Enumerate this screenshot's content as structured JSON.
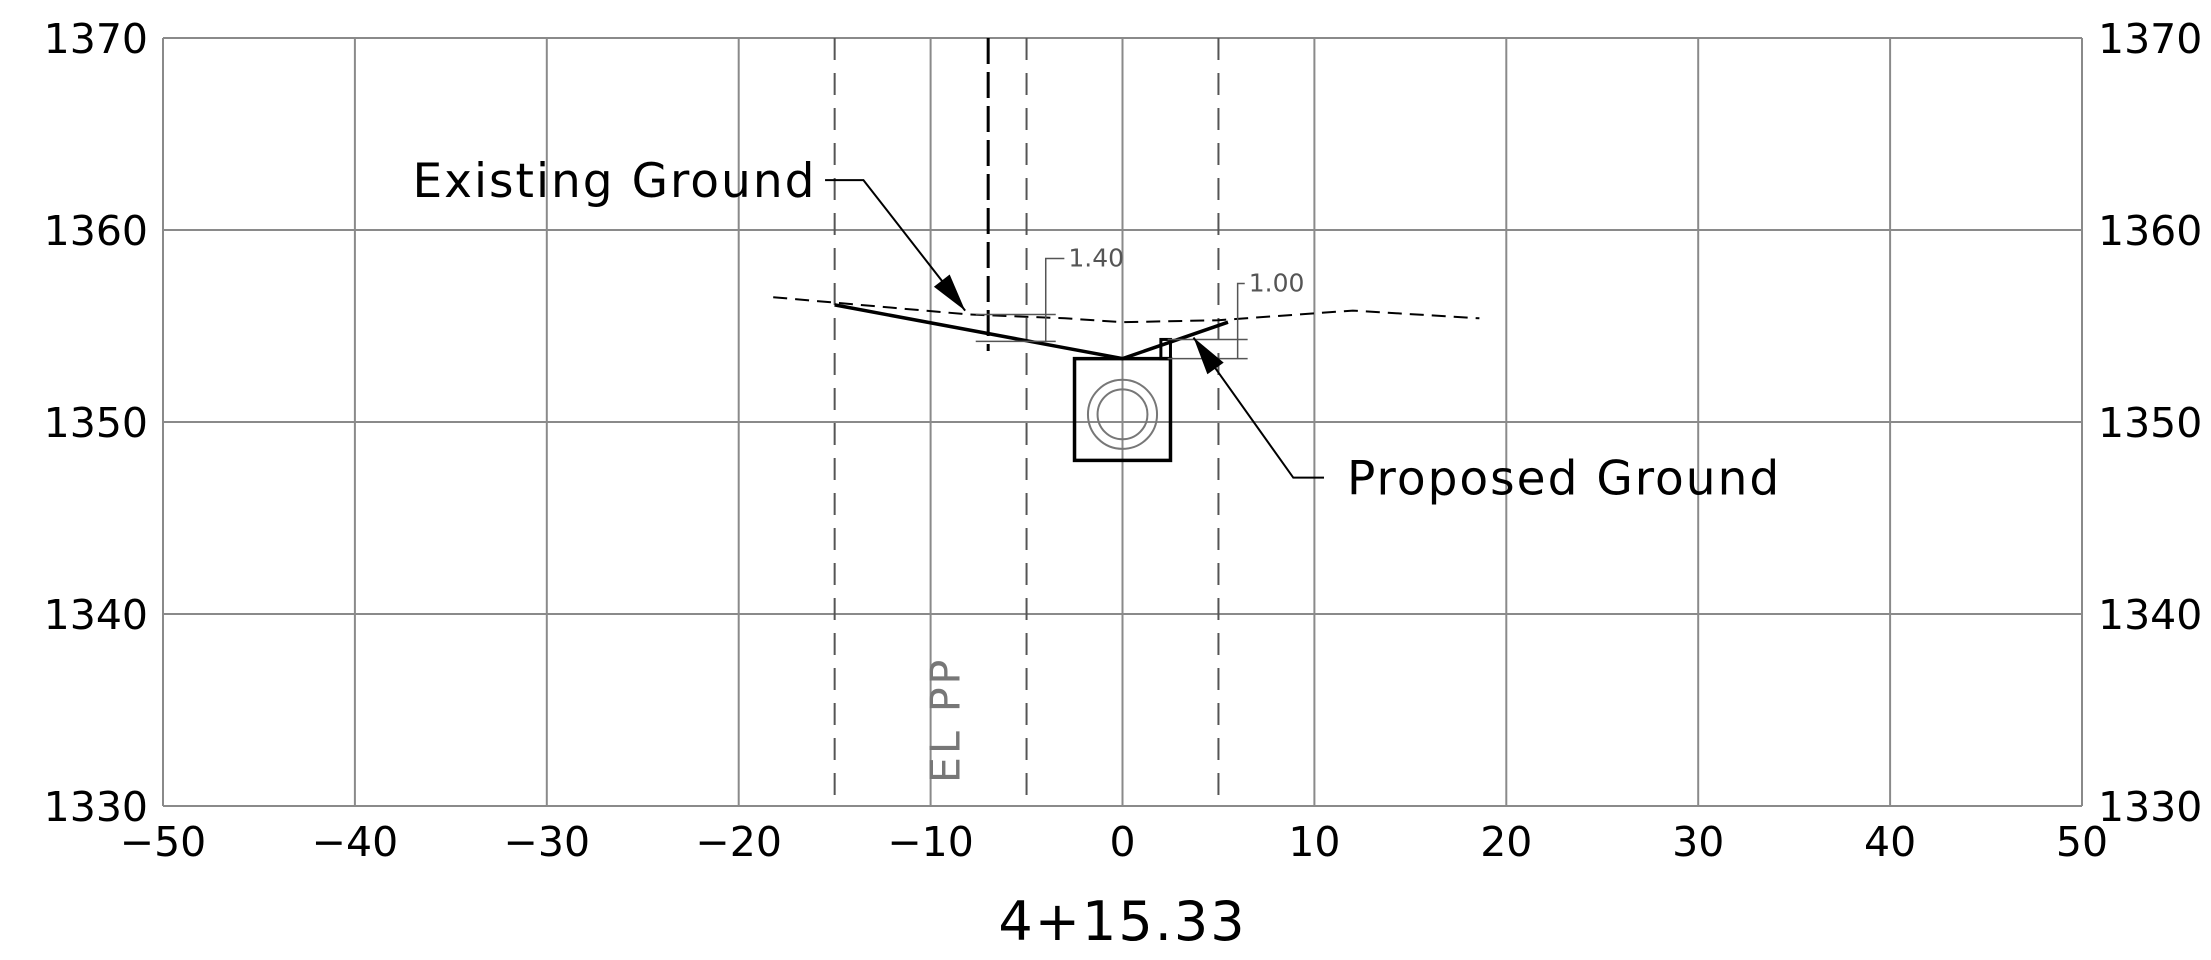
{
  "chart_data": {
    "type": "cross-section",
    "station_label": "4+15.33",
    "xlim": [
      -50,
      50
    ],
    "ylim": [
      1330,
      1370
    ],
    "x_ticks": [
      -50,
      -40,
      -30,
      -20,
      -10,
      0,
      10,
      20,
      30,
      40,
      50
    ],
    "x_tick_labels": [
      "−50",
      "−40",
      "−30",
      "−20",
      "−10",
      "0",
      "10",
      "20",
      "30",
      "40",
      "50"
    ],
    "y_ticks": [
      1330,
      1340,
      1350,
      1360,
      1370
    ],
    "y_tick_labels": [
      "1330",
      "1340",
      "1350",
      "1360",
      "1370"
    ],
    "grid": true,
    "dashed_verticals_x": [
      -15,
      -5,
      5
    ],
    "el_pp": {
      "x": -7,
      "y_top": 1370,
      "y_bottom": 1353.7,
      "label": "EL PP"
    },
    "existing_ground": {
      "name": "Existing Ground",
      "points": [
        [
          -18.2,
          1356.5
        ],
        [
          -8,
          1355.6
        ],
        [
          -3,
          1355.4
        ],
        [
          0,
          1355.2
        ],
        [
          5,
          1355.3
        ],
        [
          12,
          1355.8
        ],
        [
          18.6,
          1355.4
        ]
      ]
    },
    "proposed_ground": {
      "name": "Proposed Ground",
      "points": [
        [
          -15,
          1356.1
        ],
        [
          0,
          1353.3
        ],
        [
          5.5,
          1355.2
        ]
      ]
    },
    "structure_box": {
      "x": [
        -2.5,
        2.5
      ],
      "y": [
        1348.0,
        1353.3
      ]
    },
    "structure_inlet": {
      "x": [
        2.0,
        2.5
      ],
      "y": [
        1353.3,
        1354.3
      ]
    },
    "pipe": {
      "cx": 0,
      "cy": 1350.4,
      "r_outer": 1.8,
      "r_inner": 1.3
    },
    "dimensions": [
      {
        "label": "1.40",
        "x": -4,
        "y_low": 1354.2,
        "y_high": 1355.6,
        "text_x": -2.3,
        "text_y": 1358.1
      },
      {
        "label": "1.00",
        "x": 6,
        "y_low": 1353.3,
        "y_high": 1354.3,
        "text_x": 7.1,
        "text_y": 1356.8
      }
    ],
    "annotations": [
      {
        "text": "Existing Ground",
        "text_x": -37,
        "text_y": 1362.6,
        "arrow": [
          [
            -15.5,
            1362.6
          ],
          [
            -13.5,
            1362.6
          ],
          [
            -8.2,
            1355.8
          ]
        ]
      },
      {
        "text": "Proposed Ground",
        "text_x": 11.7,
        "text_y": 1347.1,
        "arrow": [
          [
            10.5,
            1347.1
          ],
          [
            8.9,
            1347.1
          ],
          [
            3.7,
            1354.4
          ]
        ]
      }
    ]
  }
}
